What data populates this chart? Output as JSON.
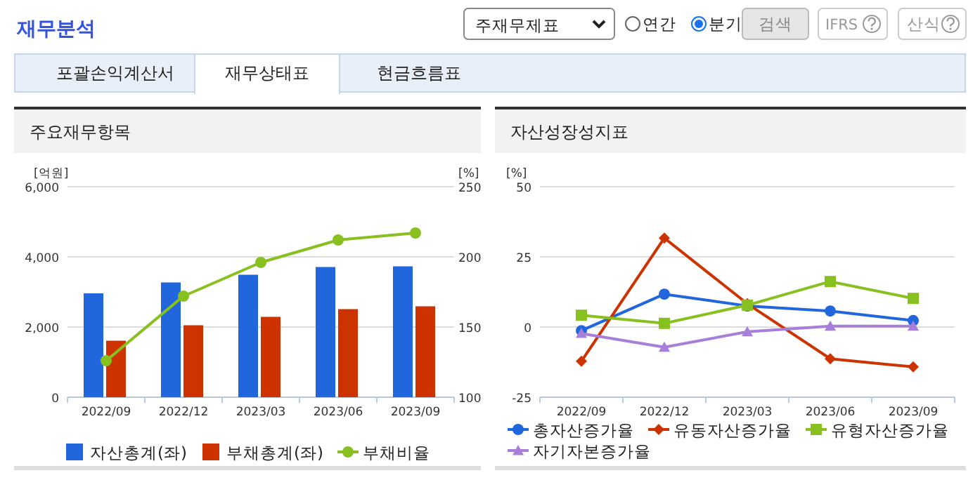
{
  "chart_data": [
    {
      "type": "other",
      "title": "재무분석",
      "annotations": [
        "주재무제표",
        "연간",
        "분기",
        "검색",
        "IFRS",
        "산식",
        "포괄손익계산서",
        "재무상태표",
        "현금흐름표"
      ]
    },
    {
      "type": "bar",
      "title": "주요재무항목",
      "ylabel": "[억원]",
      "y2label": "[%]",
      "categories": [
        "2022/09",
        "2022/12",
        "2023/03",
        "2023/06",
        "2023/09"
      ],
      "series": [
        {
          "name": "자산총계(좌)",
          "color": "#2266dd",
          "values": [
            2960,
            3270,
            3490,
            3710,
            3730
          ]
        },
        {
          "name": "부채총계(좌)",
          "color": "#cc3300",
          "values": [
            1610,
            2050,
            2290,
            2510,
            2590
          ]
        },
        {
          "name": "부채비율",
          "type": "line",
          "axis": "y2",
          "marker": "circle",
          "color": "#88c020",
          "values": [
            126,
            172,
            196,
            212,
            217
          ]
        }
      ],
      "ylim": [
        0,
        6000
      ],
      "yticks": [
        {
          "value": 0,
          "label": "0"
        },
        {
          "value": 2000,
          "label": "2,000"
        },
        {
          "value": 4000,
          "label": "4,000"
        },
        {
          "value": 6000,
          "label": "6,000"
        }
      ],
      "y2lim": [
        100,
        250
      ],
      "y2ticks": [
        100,
        150,
        200,
        250
      ],
      "grid": "y",
      "legend": "bottom"
    },
    {
      "type": "line",
      "title": "자산성장성지표",
      "ylabel": "[%]",
      "categories": [
        "2022/09",
        "2022/12",
        "2023/03",
        "2023/06",
        "2023/09"
      ],
      "series": [
        {
          "name": "총자산증가율",
          "color": "#2266dd",
          "marker": "circle",
          "values": [
            -1.3,
            11.7,
            7.5,
            5.7,
            2.3
          ]
        },
        {
          "name": "유동자산증가율",
          "color": "#cc3300",
          "marker": "diamond",
          "values": [
            -12.2,
            31.7,
            8.3,
            -11.3,
            -14.2
          ]
        },
        {
          "name": "유형자산증가율",
          "color": "#88c020",
          "marker": "square",
          "values": [
            4.2,
            1.3,
            7.8,
            16.2,
            10.2
          ]
        },
        {
          "name": "자기자본증가율",
          "color": "#a67fd8",
          "marker": "triangle",
          "values": [
            -2.3,
            -7.2,
            -1.7,
            0.3,
            0.3
          ]
        }
      ],
      "ylim": [
        -25,
        50
      ],
      "yticks": [
        -25,
        0,
        25,
        50
      ],
      "grid": "y",
      "legend": "bottom"
    }
  ]
}
